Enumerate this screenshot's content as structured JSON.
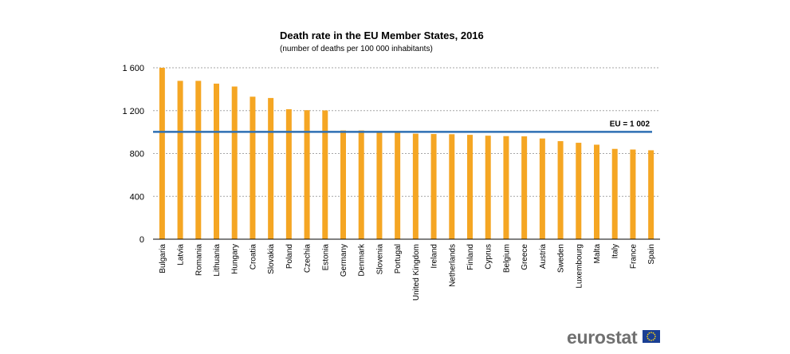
{
  "chart_data": {
    "type": "bar",
    "title": "Death rate in the EU Member States, 2016",
    "subtitle": "(number of deaths per 100 000 inhabitants)",
    "ylim": [
      0,
      1600
    ],
    "yticks": [
      0,
      400,
      800,
      1200,
      1600
    ],
    "ytick_labels": [
      "0",
      "400",
      "800",
      "1 200",
      "1 600"
    ],
    "grid": true,
    "categories": [
      "Bulgaria",
      "Latvia",
      "Romania",
      "Lithuania",
      "Hungary",
      "Croatia",
      "Slovakia",
      "Poland",
      "Czechia",
      "Estonia",
      "Germany",
      "Denmark",
      "Slovenia",
      "Portugal",
      "United Kingdom",
      "Ireland",
      "Netherlands",
      "Finland",
      "Cyprus",
      "Belgium",
      "Greece",
      "Austria",
      "Sweden",
      "Luxembourg",
      "Malta",
      "Italy",
      "France",
      "Spain"
    ],
    "values": [
      1600,
      1478,
      1478,
      1452,
      1425,
      1330,
      1318,
      1213,
      1204,
      1202,
      1015,
      1015,
      998,
      997,
      985,
      982,
      980,
      974,
      966,
      962,
      960,
      940,
      915,
      900,
      882,
      843,
      837,
      830
    ],
    "bar_color": "#f5a623",
    "reference_line": {
      "label": "EU = 1 002",
      "value": 1002,
      "color": "#2e6fb3"
    }
  },
  "footer": {
    "brand": "eurostat",
    "flag_icon": "eu-flag-icon"
  }
}
